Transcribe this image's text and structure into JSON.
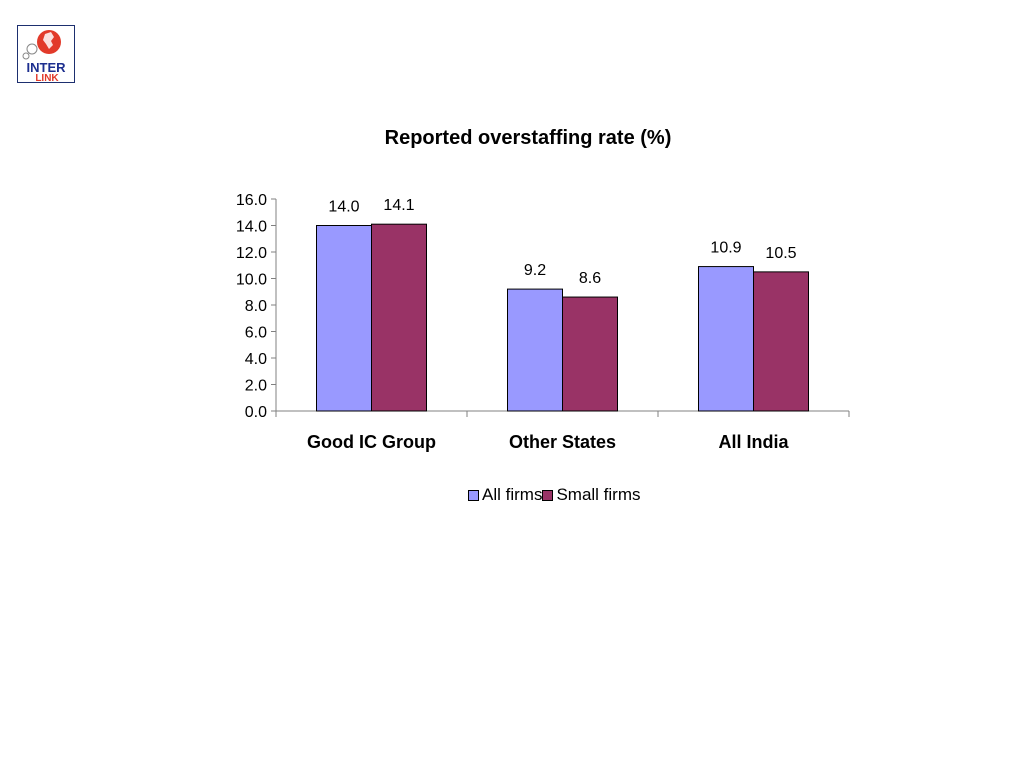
{
  "logo": {
    "text_top": "INTER",
    "text_bottom": "LINK"
  },
  "colors": {
    "all_firms": "#9999ff",
    "small_firms": "#993366"
  },
  "chart_data": {
    "type": "bar",
    "title": "Reported overstaffing rate (%)",
    "categories": [
      "Good IC Group",
      "Other States",
      "All India"
    ],
    "series": [
      {
        "name": "All firms",
        "values": [
          14.0,
          9.2,
          10.9
        ],
        "labels": [
          "14.0",
          "9.2",
          "10.9"
        ],
        "color": "#9999ff"
      },
      {
        "name": "Small firms",
        "values": [
          14.1,
          8.6,
          10.5
        ],
        "labels": [
          "14.1",
          "8.6",
          "10.5"
        ],
        "color": "#993366"
      }
    ],
    "y_ticks": [
      "0.0",
      "2.0",
      "4.0",
      "6.0",
      "8.0",
      "10.0",
      "12.0",
      "14.0",
      "16.0"
    ],
    "ylim": [
      0,
      16
    ],
    "grid": false,
    "legend_position": "bottom"
  }
}
